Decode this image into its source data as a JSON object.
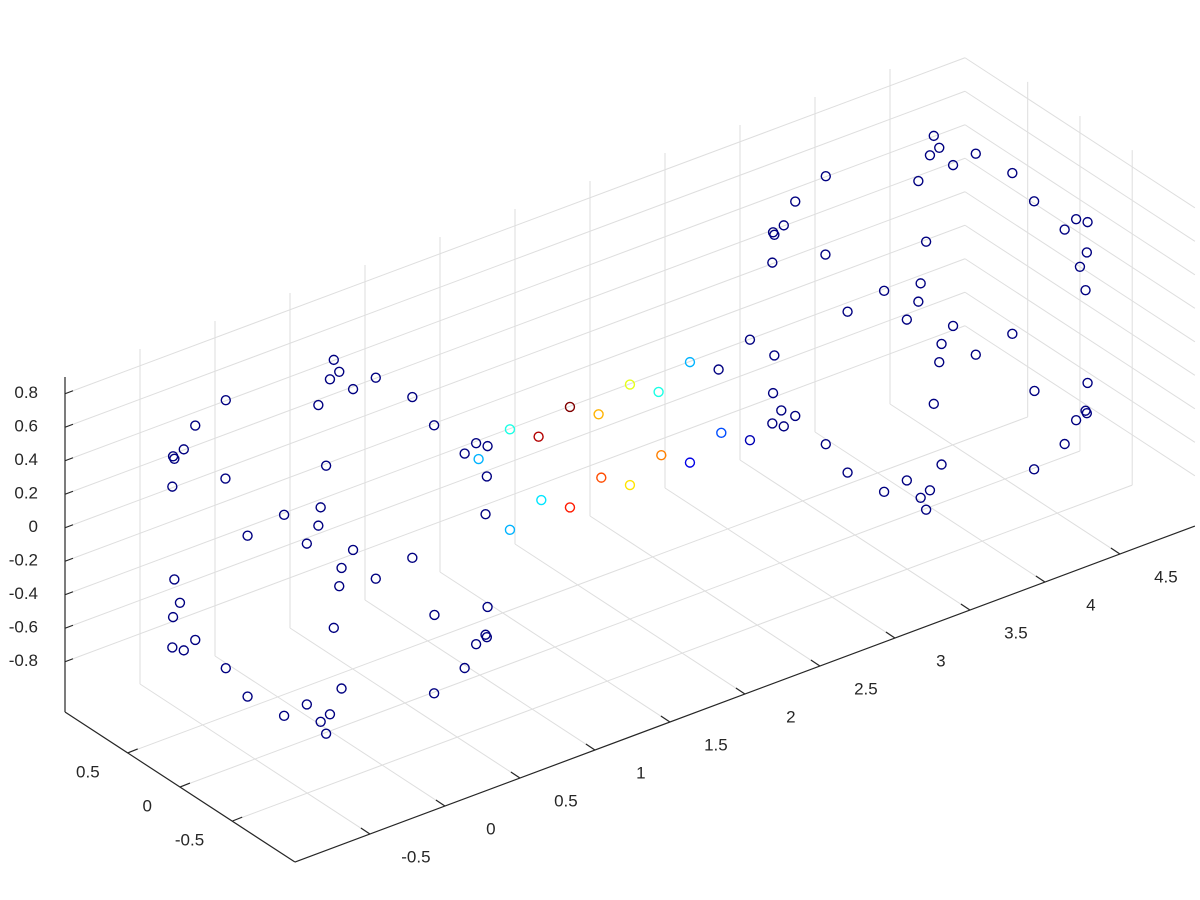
{
  "chart_data": {
    "type": "scatter3",
    "xlim": [
      -1,
      5
    ],
    "ylim": [
      -1.1,
      1.1
    ],
    "zlim": [
      -1.1,
      0.9
    ],
    "xticks": [
      -0.5,
      0,
      0.5,
      1,
      1.5,
      2,
      2.5,
      3,
      3.5,
      4,
      4.5
    ],
    "yticks": [
      -0.5,
      0,
      0.5
    ],
    "zticks": [
      -0.8,
      -0.6,
      -0.4,
      -0.2,
      0,
      0.2,
      0.4,
      0.6,
      0.8
    ],
    "grid": true,
    "colormap": "jet",
    "clim": [
      0,
      1
    ],
    "x": [
      0.48,
      0.48,
      0.48,
      0.48,
      -0.48,
      -0.48,
      -0.48,
      -0.48,
      0.64,
      0.64,
      0.64,
      0.64,
      -0.64,
      -0.64,
      -0.64,
      -0.64,
      0.6,
      0.6,
      0.6,
      0.6,
      -0.6,
      -0.6,
      -0.6,
      -0.6,
      0.36,
      0.36,
      0.36,
      0.36,
      -0.36,
      -0.36,
      -0.36,
      -0.36,
      0.8,
      0.8,
      0.8,
      0.8,
      -0.8,
      -0.8,
      -0.8,
      -0.8,
      0.48,
      0.48,
      0.48,
      0.48,
      -0.48,
      -0.48,
      -0.48,
      -0.48,
      -1,
      0,
      0,
      0,
      0,
      4.48,
      4.48,
      4.48,
      4.48,
      3.52,
      3.52,
      3.52,
      3.52,
      4.64,
      4.64,
      4.64,
      4.64,
      3.36,
      3.36,
      3.36,
      3.36,
      4.6,
      4.6,
      4.6,
      4.6,
      3.4,
      3.4,
      3.4,
      3.4,
      4.36,
      4.36,
      4.36,
      4.36,
      3.64,
      3.64,
      3.64,
      3.64,
      4.8,
      4.8,
      4.8,
      4.8,
      3.2,
      3.2,
      3.2,
      3.2,
      4.48,
      4.48,
      4.48,
      4.48,
      3.52,
      3.52,
      3.52,
      3.52,
      5,
      4,
      4,
      4,
      4,
      1.2,
      1.2,
      1.2,
      1.2,
      1.6,
      1.6,
      1.6,
      1.6,
      2,
      2,
      2,
      2,
      2.4,
      2.4,
      2.4,
      2.4,
      2.8,
      2.8,
      2.8,
      2.8
    ],
    "y": [
      0.6,
      0.6,
      -0.6,
      -0.6,
      0.6,
      0.6,
      -0.6,
      -0.6,
      0.48,
      0.48,
      -0.48,
      -0.48,
      0.48,
      0.48,
      -0.48,
      -0.48,
      0.64,
      0.64,
      -0.64,
      -0.64,
      0.64,
      0.64,
      -0.64,
      -0.64,
      0.48,
      0.48,
      -0.48,
      -0.48,
      0.48,
      0.48,
      -0.48,
      -0.48,
      0.36,
      0.36,
      -0.36,
      -0.36,
      0.36,
      0.36,
      -0.36,
      -0.36,
      0.8,
      0.8,
      -0.8,
      -0.8,
      0.8,
      0.8,
      -0.8,
      -0.8,
      0,
      1,
      -1,
      0,
      0,
      0.6,
      0.6,
      -0.6,
      -0.6,
      0.6,
      0.6,
      -0.6,
      -0.6,
      0.48,
      0.48,
      -0.48,
      -0.48,
      0.48,
      0.48,
      -0.48,
      -0.48,
      0.64,
      0.64,
      -0.64,
      -0.64,
      0.64,
      0.64,
      -0.64,
      -0.64,
      0.48,
      0.48,
      -0.48,
      -0.48,
      0.48,
      0.48,
      -0.48,
      -0.48,
      0.36,
      0.36,
      -0.36,
      -0.36,
      0.36,
      0.36,
      -0.36,
      -0.36,
      0.8,
      0.8,
      -0.8,
      -0.8,
      0.8,
      0.8,
      -0.8,
      -0.8,
      0,
      1,
      -1,
      0,
      0,
      0.3,
      0,
      -0.3,
      0,
      0.3,
      0,
      -0.3,
      0,
      0.3,
      0,
      -0.3,
      0,
      0.3,
      0,
      -0.3,
      0,
      0.3,
      0,
      -0.3,
      0
    ],
    "z": [
      0.64,
      -0.64,
      0.64,
      -0.64,
      0.64,
      -0.64,
      0.64,
      -0.64,
      0.6,
      -0.6,
      0.6,
      -0.6,
      0.6,
      -0.6,
      0.6,
      -0.6,
      0.48,
      -0.48,
      0.48,
      -0.48,
      0.48,
      -0.48,
      0.48,
      -0.48,
      0.8,
      -0.8,
      0.8,
      -0.8,
      0.8,
      -0.8,
      0.8,
      -0.8,
      0.48,
      -0.48,
      0.48,
      -0.48,
      0.48,
      -0.48,
      0.48,
      -0.48,
      0.36,
      -0.36,
      0.36,
      -0.36,
      0.36,
      -0.36,
      0.36,
      -0.36,
      0,
      0,
      0,
      1,
      -1,
      0.64,
      -0.64,
      0.64,
      -0.64,
      0.64,
      -0.64,
      0.64,
      -0.64,
      0.6,
      -0.6,
      0.6,
      -0.6,
      0.6,
      -0.6,
      0.6,
      -0.6,
      0.48,
      -0.48,
      0.48,
      -0.48,
      0.48,
      -0.48,
      0.48,
      -0.48,
      0.8,
      -0.8,
      0.8,
      -0.8,
      0.8,
      -0.8,
      0.8,
      -0.8,
      0.48,
      -0.48,
      0.48,
      -0.48,
      0.48,
      -0.48,
      0.48,
      -0.48,
      0.36,
      -0.36,
      0.36,
      -0.36,
      0.36,
      -0.36,
      0.36,
      -0.36,
      0,
      0,
      0,
      1,
      -1,
      0,
      0.3,
      0,
      -0.3,
      0,
      0.3,
      0,
      -0.3,
      0,
      0.3,
      0,
      -0.3,
      0,
      0.3,
      0,
      -0.3,
      0,
      0.3,
      0,
      -0.3
    ],
    "c": [
      0,
      0,
      0,
      0,
      0,
      0,
      0,
      0,
      0,
      0,
      0,
      0,
      0,
      0,
      0,
      0,
      0,
      0,
      0,
      0,
      0,
      0,
      0,
      0,
      0,
      0,
      0,
      0,
      0,
      0,
      0,
      0,
      0,
      0,
      0,
      0,
      0,
      0,
      0,
      0,
      0,
      0,
      0,
      0,
      0,
      0,
      0,
      0,
      0,
      0,
      0,
      0,
      0,
      0,
      0,
      0,
      0,
      0,
      0,
      0,
      0,
      0,
      0,
      0,
      0,
      0,
      0,
      0,
      0,
      0,
      0,
      0,
      0,
      0,
      0,
      0,
      0,
      0,
      0,
      0,
      0,
      0,
      0,
      0,
      0,
      0,
      0,
      0,
      0,
      0,
      0,
      0,
      0,
      0,
      0,
      0,
      0,
      0,
      0,
      0,
      0,
      0,
      0,
      0,
      0,
      0,
      0.3,
      0.4,
      0.35,
      0.3,
      0.95,
      1,
      0.8,
      0.85,
      0.7,
      0.6,
      0.75,
      0.65,
      0.4,
      0.3,
      0.2,
      0.1,
      0,
      0,
      0,
      0.05
    ]
  }
}
